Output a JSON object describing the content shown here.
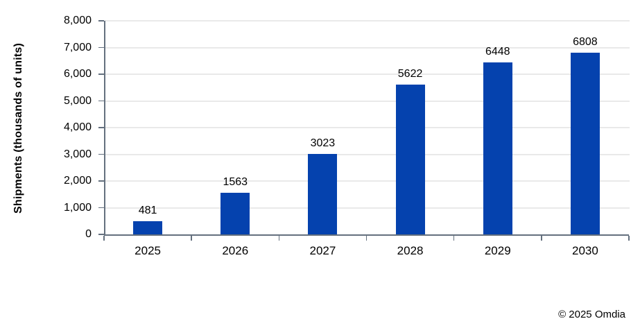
{
  "chart_data": {
    "type": "bar",
    "title": "",
    "xlabel": "",
    "ylabel": "Shipments (thousands of units)",
    "categories": [
      "2025",
      "2026",
      "2027",
      "2028",
      "2029",
      "2030"
    ],
    "values": [
      481,
      1563,
      3023,
      5622,
      6448,
      6808
    ],
    "data_labels": [
      "481",
      "1563",
      "3023",
      "5622",
      "6448",
      "6808"
    ],
    "ylim": [
      0,
      8000
    ],
    "ytick_interval": 1000,
    "ytick_labels": [
      "0",
      "1,000",
      "2,000",
      "3,000",
      "4,000",
      "5,000",
      "6,000",
      "7,000",
      "8,000"
    ],
    "grid": true,
    "legend": false,
    "colors": {
      "bar": "#0542ae",
      "axis": "#64707e",
      "gridline": "#e9e9e9",
      "text": "#000000",
      "background": "#ffffff"
    }
  },
  "footer": {
    "copyright": "© 2025 Omdia"
  }
}
